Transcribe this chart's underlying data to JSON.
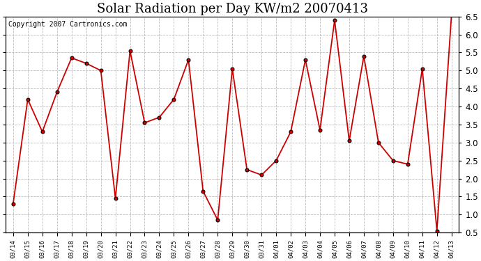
{
  "title": "Solar Radiation per Day KW/m2 20070413",
  "copyright": "Copyright 2007 Cartronics.com",
  "labels": [
    "03/14",
    "03/15",
    "03/16",
    "03/17",
    "03/18",
    "03/19",
    "03/20",
    "03/21",
    "03/22",
    "03/23",
    "03/24",
    "03/25",
    "03/26",
    "03/27",
    "03/28",
    "03/29",
    "03/30",
    "03/31",
    "04/01",
    "04/02",
    "04/03",
    "04/04",
    "04/05",
    "04/06",
    "04/07",
    "04/08",
    "04/09",
    "04/10",
    "04/11",
    "04/12",
    "04/13"
  ],
  "values": [
    1.3,
    4.2,
    3.3,
    4.4,
    5.35,
    5.2,
    5.0,
    1.45,
    5.55,
    3.55,
    3.7,
    4.2,
    5.3,
    1.65,
    0.85,
    5.05,
    2.25,
    2.1,
    2.5,
    3.3,
    5.3,
    3.35,
    6.4,
    3.05,
    5.4,
    3.0,
    2.5,
    2.4,
    5.05,
    0.55,
    6.55
  ],
  "line_color": "#cc0000",
  "marker_color": "#cc0000",
  "marker_edge_color": "#000000",
  "background_color": "#ffffff",
  "grid_color": "#bbbbbb",
  "ylim": [
    0.5,
    6.5
  ],
  "yticks": [
    0.5,
    1.0,
    1.5,
    2.0,
    2.5,
    3.0,
    3.5,
    4.0,
    4.5,
    5.0,
    5.5,
    6.0,
    6.5
  ],
  "title_fontsize": 13,
  "copyright_fontsize": 7,
  "xlabel_fontsize": 6.5,
  "ylabel_fontsize": 8.5
}
